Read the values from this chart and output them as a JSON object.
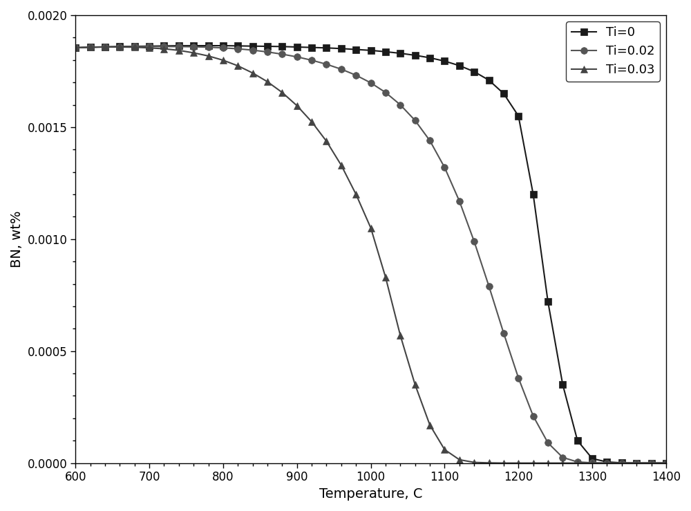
{
  "title": "",
  "xlabel": "Temperature, C",
  "ylabel": "BN, wt%",
  "xlim": [
    600,
    1400
  ],
  "ylim": [
    0,
    0.002
  ],
  "yticks": [
    0.0,
    0.0005,
    0.001,
    0.0015,
    0.002
  ],
  "xticks": [
    600,
    700,
    800,
    900,
    1000,
    1100,
    1200,
    1300,
    1400
  ],
  "series": [
    {
      "label": "Ti=0",
      "color": "#1a1a1a",
      "marker": "s",
      "markersize": 7,
      "x": [
        600,
        620,
        640,
        660,
        680,
        700,
        720,
        740,
        760,
        780,
        800,
        820,
        840,
        860,
        880,
        900,
        920,
        940,
        960,
        980,
        1000,
        1020,
        1040,
        1060,
        1080,
        1100,
        1120,
        1140,
        1160,
        1180,
        1200,
        1220,
        1240,
        1260,
        1280,
        1300,
        1320,
        1340,
        1360,
        1380,
        1400
      ],
      "y": [
        0.001855,
        0.001857,
        0.001859,
        0.00186,
        0.001861,
        0.001862,
        0.001863,
        0.001864,
        0.001864,
        0.001864,
        0.001864,
        0.001863,
        0.001862,
        0.001861,
        0.00186,
        0.001858,
        0.001856,
        0.001854,
        0.001851,
        0.001847,
        0.001843,
        0.001837,
        0.00183,
        0.001821,
        0.00181,
        0.001795,
        0.001775,
        0.001748,
        0.00171,
        0.00165,
        0.00155,
        0.0012,
        0.00072,
        0.00035,
        0.0001,
        2e-05,
        5e-06,
        1e-06,
        0.0,
        0.0,
        0.0
      ]
    },
    {
      "label": "Ti=0.02",
      "color": "#555555",
      "marker": "o",
      "markersize": 7,
      "x": [
        600,
        620,
        640,
        660,
        680,
        700,
        720,
        740,
        760,
        780,
        800,
        820,
        840,
        860,
        880,
        900,
        920,
        940,
        960,
        980,
        1000,
        1020,
        1040,
        1060,
        1080,
        1100,
        1120,
        1140,
        1160,
        1180,
        1200,
        1220,
        1240,
        1260,
        1280,
        1300,
        1320,
        1340,
        1360,
        1380,
        1400
      ],
      "y": [
        0.001855,
        0.001857,
        0.001858,
        0.001859,
        0.00186,
        0.00186,
        0.00186,
        0.00186,
        0.001859,
        0.001857,
        0.001854,
        0.00185,
        0.001844,
        0.001836,
        0.001826,
        0.001814,
        0.001799,
        0.001781,
        0.001759,
        0.001732,
        0.001698,
        0.001655,
        0.0016,
        0.00153,
        0.00144,
        0.00132,
        0.00117,
        0.00099,
        0.00079,
        0.00058,
        0.00038,
        0.00021,
        9e-05,
        2.5e-05,
        5e-06,
        1e-06,
        0.0,
        0.0,
        0.0,
        0.0,
        0.0
      ]
    },
    {
      "label": "Ti=0.03",
      "color": "#444444",
      "marker": "^",
      "markersize": 7,
      "x": [
        600,
        620,
        640,
        660,
        680,
        700,
        720,
        740,
        760,
        780,
        800,
        820,
        840,
        860,
        880,
        900,
        920,
        940,
        960,
        980,
        1000,
        1020,
        1040,
        1060,
        1080,
        1100,
        1120,
        1140,
        1160,
        1180,
        1200,
        1220,
        1240,
        1260,
        1280,
        1300,
        1320,
        1340,
        1360,
        1380,
        1400
      ],
      "y": [
        0.001855,
        0.001857,
        0.001858,
        0.001858,
        0.001857,
        0.001854,
        0.00185,
        0.001843,
        0.001832,
        0.001818,
        0.001799,
        0.001774,
        0.001742,
        0.001703,
        0.001655,
        0.001596,
        0.001524,
        0.001437,
        0.00133,
        0.0012,
        0.00105,
        0.00083,
        0.00057,
        0.00035,
        0.00017,
        6e-05,
        1.5e-05,
        3e-06,
        1e-06,
        0.0,
        0.0,
        0.0,
        0.0,
        0.0,
        0.0,
        0.0,
        0.0,
        0.0,
        0.0,
        0.0,
        0.0
      ]
    }
  ],
  "legend_loc": "upper right",
  "background_color": "#ffffff",
  "figure_facecolor": "#ffffff",
  "linewidth": 1.5,
  "tick_direction": "out"
}
